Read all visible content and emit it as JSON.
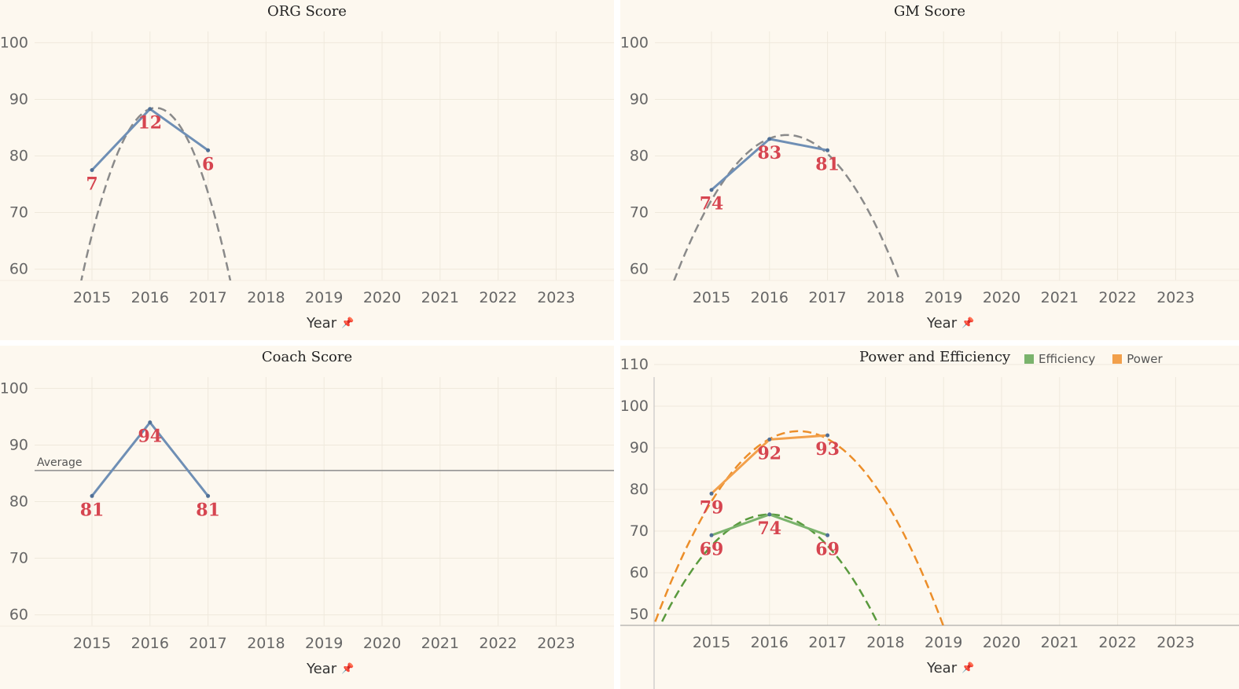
{
  "accent_line_color": "#6f8fb5",
  "label_color": "#d64550",
  "trend_color": "#8a8a8a",
  "pin_icon": "pin-icon",
  "chart_data": [
    {
      "type": "line",
      "title": "ORG Score",
      "xlabel": "Year",
      "x": [
        2015,
        2016,
        2017,
        2018,
        2019,
        2020,
        2021,
        2022,
        2023
      ],
      "ylim": [
        58,
        102
      ],
      "yticks": [
        60,
        70,
        80,
        90,
        100
      ],
      "series": [
        {
          "x": [
            2015,
            2016,
            2017
          ],
          "values": [
            77.5,
            88.3,
            81.0
          ],
          "labels": [
            "7",
            "12",
            "6"
          ],
          "color": "#6f8fb5"
        }
      ],
      "trend": [
        {
          "color": "#8a8a8a",
          "vertex_x": 2016.1,
          "vertex_y": 88.5,
          "a": -18.5,
          "x_range": [
            2014.35,
            2018.0
          ]
        }
      ],
      "grid": true
    },
    {
      "type": "line",
      "title": "GM Score",
      "xlabel": "Year",
      "x": [
        2015,
        2016,
        2017,
        2018,
        2019,
        2020,
        2021,
        2022,
        2023
      ],
      "ylim": [
        58,
        102
      ],
      "yticks": [
        60,
        70,
        80,
        90,
        100
      ],
      "series": [
        {
          "x": [
            2015,
            2016,
            2017
          ],
          "values": [
            74,
            83,
            81
          ],
          "labels": [
            "74",
            "83",
            "81"
          ],
          "color": "#6f8fb5"
        }
      ],
      "trend": [
        {
          "color": "#8a8a8a",
          "vertex_x": 2016.3,
          "vertex_y": 83.7,
          "a": -6.8,
          "x_range": [
            2014.35,
            2018.3
          ]
        }
      ],
      "grid": true
    },
    {
      "type": "line",
      "title": "Coach Score",
      "xlabel": "Year",
      "x": [
        2015,
        2016,
        2017,
        2018,
        2019,
        2020,
        2021,
        2022,
        2023
      ],
      "ylim": [
        58,
        102
      ],
      "yticks": [
        60,
        70,
        80,
        90,
        100
      ],
      "series": [
        {
          "x": [
            2015,
            2016,
            2017
          ],
          "values": [
            81,
            94,
            81
          ],
          "labels": [
            "81",
            "94",
            "81"
          ],
          "color": "#6f8fb5"
        }
      ],
      "reference_line": {
        "label": "Average",
        "value": 85.5
      },
      "grid": true
    },
    {
      "type": "line",
      "title": "Power and Efficiency",
      "xlabel": "Year",
      "x": [
        2015,
        2016,
        2017,
        2018,
        2019,
        2020,
        2021,
        2022,
        2023
      ],
      "ylim": [
        47,
        113
      ],
      "yticks": [
        50,
        60,
        70,
        80,
        90,
        100,
        110
      ],
      "series": [
        {
          "name": "Efficiency",
          "x": [
            2015,
            2016,
            2017
          ],
          "values": [
            69,
            74,
            69
          ],
          "labels": [
            "69",
            "74",
            "69"
          ],
          "color": "#7ab36c"
        },
        {
          "name": "Power",
          "x": [
            2015,
            2016,
            2017
          ],
          "values": [
            79,
            92,
            93
          ],
          "labels": [
            "79",
            "92",
            "93"
          ],
          "color": "#f2a04b"
        }
      ],
      "trend": [
        {
          "color": "#5a9a3e",
          "vertex_x": 2016.0,
          "vertex_y": 74.0,
          "a": -7.5,
          "x_range": [
            2013.95,
            2018.2
          ]
        },
        {
          "color": "#ec8e2a",
          "vertex_x": 2016.5,
          "vertex_y": 94.0,
          "a": -7.5,
          "x_range": [
            2013.95,
            2019.2
          ]
        }
      ],
      "legend": {
        "position": "top-right"
      },
      "grid": true
    }
  ]
}
